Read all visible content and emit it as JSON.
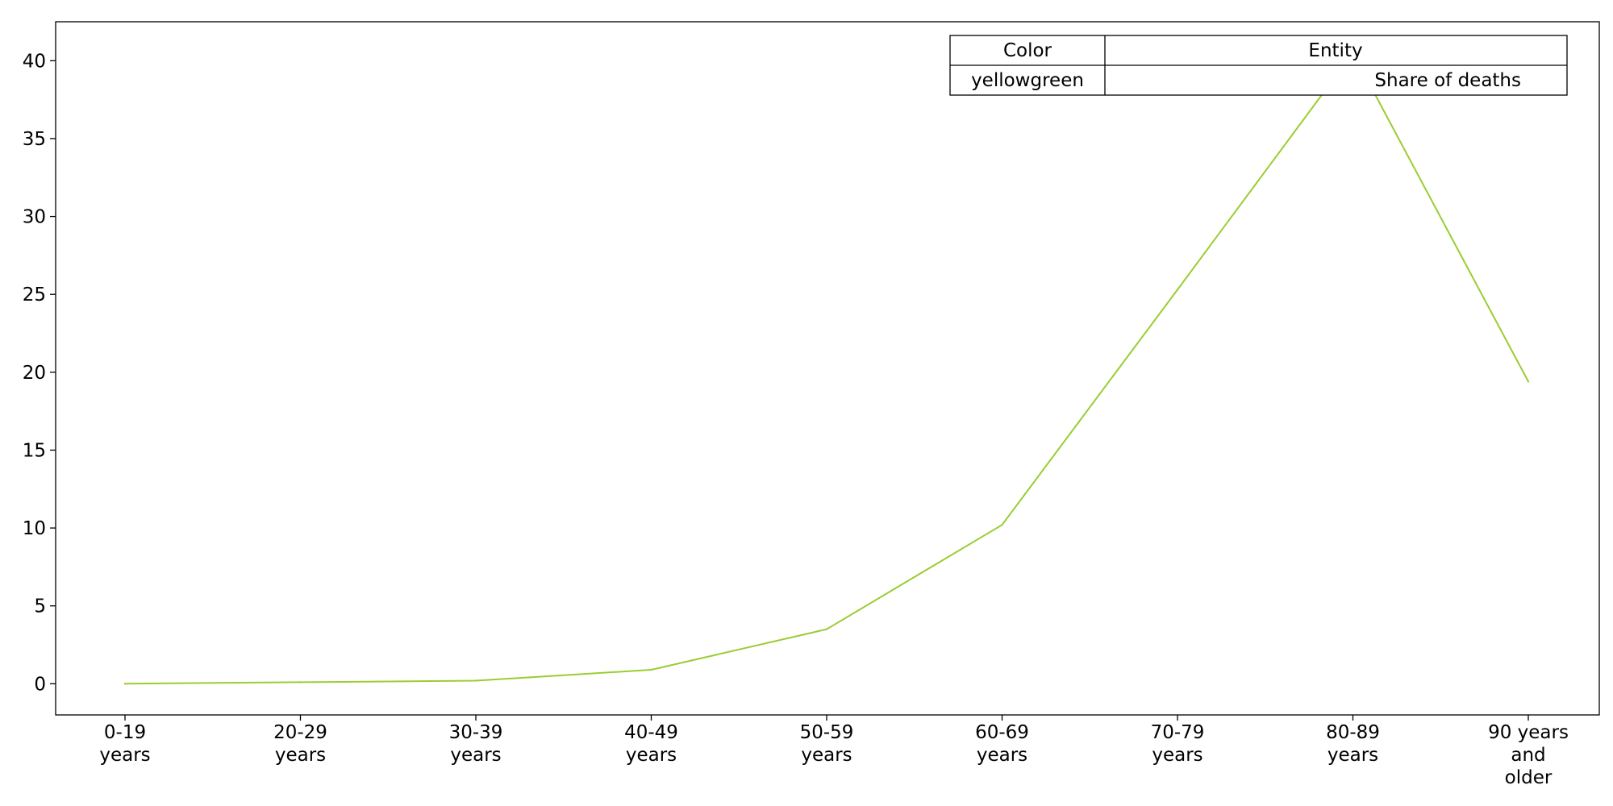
{
  "chart_data": {
    "type": "line",
    "categories": [
      "0-19 years",
      "20-29 years",
      "30-39 years",
      "40-49 years",
      "50-59 years",
      "60-69 years",
      "70-79 years",
      "80-89 years",
      "90 years and older"
    ],
    "category_label_lines": [
      [
        "0-19",
        "years"
      ],
      [
        "20-29",
        "years"
      ],
      [
        "30-39",
        "years"
      ],
      [
        "40-49",
        "years"
      ],
      [
        "50-59",
        "years"
      ],
      [
        "60-69",
        "years"
      ],
      [
        "70-79",
        "years"
      ],
      [
        "80-89",
        "years"
      ],
      [
        "90 years",
        "and",
        "older"
      ]
    ],
    "series": [
      {
        "name": "Share of deaths",
        "color": "#9acd32",
        "values": [
          0.0,
          0.1,
          0.2,
          0.9,
          3.5,
          10.2,
          25.3,
          40.5,
          19.4
        ]
      }
    ],
    "ylim": [
      -2,
      42.5
    ],
    "yticks": [
      0,
      5,
      10,
      15,
      20,
      25,
      30,
      35,
      40
    ],
    "ytick_labels": [
      "0",
      "5",
      "10",
      "15",
      "20",
      "25",
      "30",
      "35",
      "40"
    ],
    "grid": false,
    "legend": {
      "placement": "top-right",
      "header": {
        "color": "Color",
        "entity": "Entity"
      },
      "rows": [
        {
          "color": "yellowgreen",
          "entity": "Share of deaths"
        }
      ]
    }
  }
}
